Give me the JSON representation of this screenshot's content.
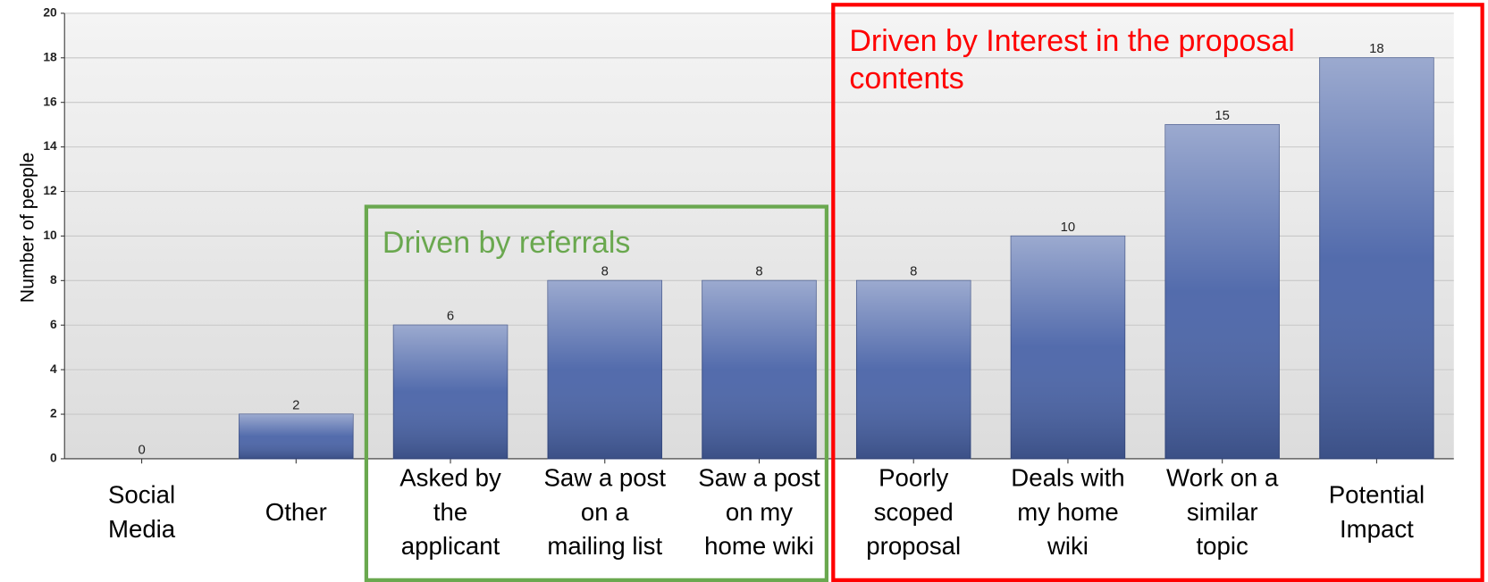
{
  "chart_data": {
    "type": "bar",
    "y_label": "Number of people",
    "categories": [
      [
        "Social",
        "Media"
      ],
      [
        "Other"
      ],
      [
        "Asked by",
        "the",
        "applicant"
      ],
      [
        "Saw a post",
        "on a",
        "mailing list"
      ],
      [
        "Saw a post",
        "on my",
        "home wiki"
      ],
      [
        "Poorly",
        "scoped",
        "proposal"
      ],
      [
        "Deals with",
        "my home",
        "wiki"
      ],
      [
        "Work on a",
        "similar",
        "topic"
      ],
      [
        "Potential",
        "Impact"
      ]
    ],
    "values": [
      0,
      2,
      6,
      8,
      8,
      8,
      10,
      15,
      18
    ],
    "color": "#4a64a8",
    "ylim": [
      0,
      20
    ],
    "yticks": [
      0,
      2,
      4,
      6,
      8,
      10,
      12,
      14,
      16,
      18,
      20
    ],
    "grid": true,
    "annotations": [
      {
        "text": [
          "Driven by referrals"
        ],
        "color": "#6aa84f"
      },
      {
        "text": [
          "Driven by Interest in the proposal",
          "contents"
        ],
        "color": "#ff0000"
      }
    ]
  }
}
